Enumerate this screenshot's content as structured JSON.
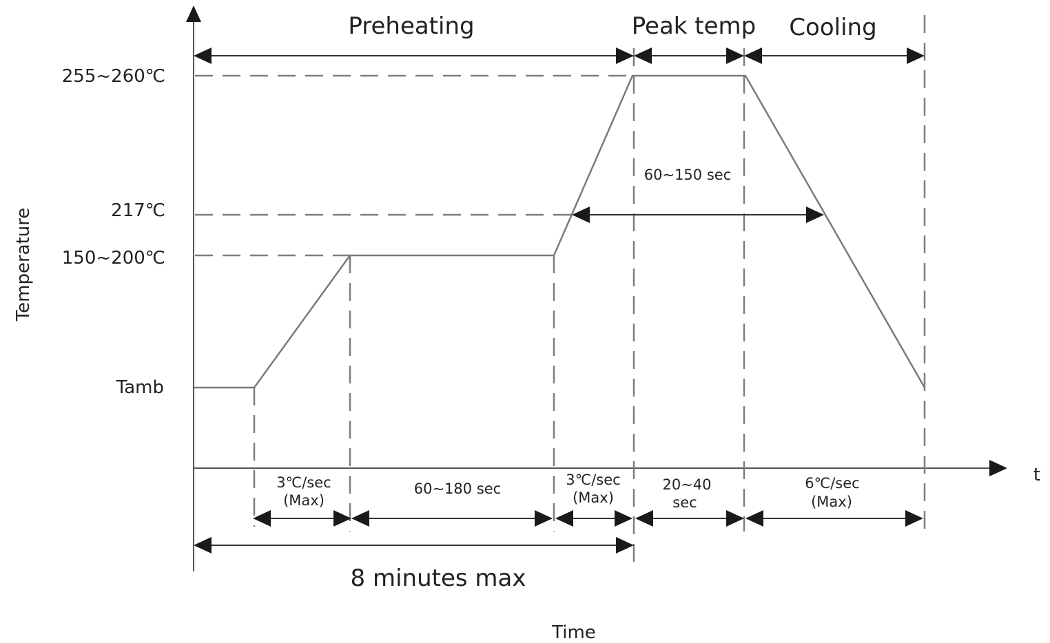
{
  "title": "",
  "axes": {
    "x_label": "Time",
    "x_symbol": "t",
    "y_label": "Temperature"
  },
  "temperature_levels": {
    "peak": "255~260℃",
    "liquidus": "217℃",
    "soak": "150~200℃",
    "ambient": "Tamb"
  },
  "zones": {
    "preheating": "Preheating",
    "peak_temp": "Peak temp",
    "cooling": "Cooling"
  },
  "intervals": {
    "above_liquidus": "60~150 sec",
    "ramp_up_1_line1": "3℃/sec",
    "ramp_up_1_line2": "(Max)",
    "soak_time": "60~180 sec",
    "ramp_up_2_line1": "3℃/sec",
    "ramp_up_2_line2": "(Max)",
    "peak_time_line1": "20~40",
    "peak_time_line2": "sec",
    "cool_rate_line1": "6℃/sec",
    "cool_rate_line2": "(Max)",
    "total_preheat": "8 minutes max"
  },
  "colors": {
    "curve": "#7a7a7a",
    "dashed_guides": "#7d7d7d",
    "arrows": "#1a1a1a"
  }
}
